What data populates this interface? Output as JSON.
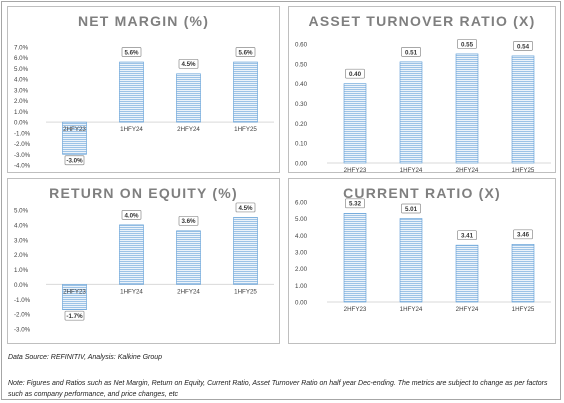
{
  "chart_data": [
    {
      "id": "net_margin",
      "type": "bar",
      "title": "NET MARGIN (%)",
      "categories": [
        "2HFY23",
        "1HFY24",
        "2HFY24",
        "1HFY25"
      ],
      "values": [
        -3.0,
        5.6,
        4.5,
        5.6
      ],
      "value_labels": [
        "-3.0%",
        "5.6%",
        "4.5%",
        "5.6%"
      ],
      "yticks": [
        -4.0,
        -3.0,
        -2.0,
        -1.0,
        0.0,
        1.0,
        2.0,
        3.0,
        4.0,
        5.0,
        6.0,
        7.0
      ],
      "ytick_labels": [
        "-4.0%",
        "-3.0%",
        "-2.0%",
        "-1.0%",
        "0.0%",
        "1.0%",
        "2.0%",
        "3.0%",
        "4.0%",
        "5.0%",
        "6.0%",
        "7.0%"
      ],
      "ylim": [
        -4.0,
        7.0
      ],
      "grid": false
    },
    {
      "id": "asset_turnover",
      "type": "bar",
      "title": "ASSET TURNOVER RATIO (X)",
      "categories": [
        "2HFY23",
        "1HFY24",
        "2HFY24",
        "1HFY25"
      ],
      "values": [
        0.4,
        0.51,
        0.55,
        0.54
      ],
      "value_labels": [
        "0.40",
        "0.51",
        "0.55",
        "0.54"
      ],
      "yticks": [
        0.0,
        0.1,
        0.2,
        0.3,
        0.4,
        0.5,
        0.6
      ],
      "ytick_labels": [
        "0.00",
        "0.10",
        "0.20",
        "0.30",
        "0.40",
        "0.50",
        "0.60"
      ],
      "ylim": [
        0.0,
        0.6
      ],
      "grid": false
    },
    {
      "id": "roe",
      "type": "bar",
      "title": "RETURN ON EQUITY (%)",
      "categories": [
        "2HFY23",
        "1HFY24",
        "2HFY24",
        "1HFY25"
      ],
      "values": [
        -1.7,
        4.0,
        3.6,
        4.5
      ],
      "value_labels": [
        "-1.7%",
        "4.0%",
        "3.6%",
        "4.5%"
      ],
      "yticks": [
        -3.0,
        -2.0,
        -1.0,
        0.0,
        1.0,
        2.0,
        3.0,
        4.0,
        5.0
      ],
      "ytick_labels": [
        "-3.0%",
        "-2.0%",
        "-1.0%",
        "0.0%",
        "1.0%",
        "2.0%",
        "3.0%",
        "4.0%",
        "5.0%"
      ],
      "ylim": [
        -3.0,
        5.0
      ],
      "grid": false
    },
    {
      "id": "current_ratio",
      "type": "bar",
      "title": "CURRENT RATIO (X)",
      "categories": [
        "2HFY23",
        "1HFY24",
        "2HFY24",
        "1HFY25"
      ],
      "values": [
        5.32,
        5.01,
        3.41,
        3.46
      ],
      "value_labels": [
        "5.32",
        "5.01",
        "3.41",
        "3.46"
      ],
      "yticks": [
        0.0,
        1.0,
        2.0,
        3.0,
        4.0,
        5.0,
        6.0
      ],
      "ytick_labels": [
        "0.00",
        "1.00",
        "2.00",
        "3.00",
        "4.00",
        "5.00",
        "6.00"
      ],
      "ylim": [
        0.0,
        6.0
      ],
      "grid": false
    }
  ],
  "colors": {
    "bar_fill": "#9dc3e6",
    "bar_stripe": "#ffffff",
    "bar_edge": "#5b9bd5",
    "title": "#7f7f7f",
    "tick": "#404040",
    "axis": "#d9d9d9",
    "label_border": "#8c8c8c"
  },
  "footer": {
    "source": "Data Source: REFINITIV, Analysis: Kalkine Group",
    "note": "Note: Figures and Ratios such as Net Margin, Return on Equity, Current Ratio, Asset Turnover Ratio on half year Dec-ending. The metrics are subject to change as per factors such as company performance, and price changes, etc"
  }
}
